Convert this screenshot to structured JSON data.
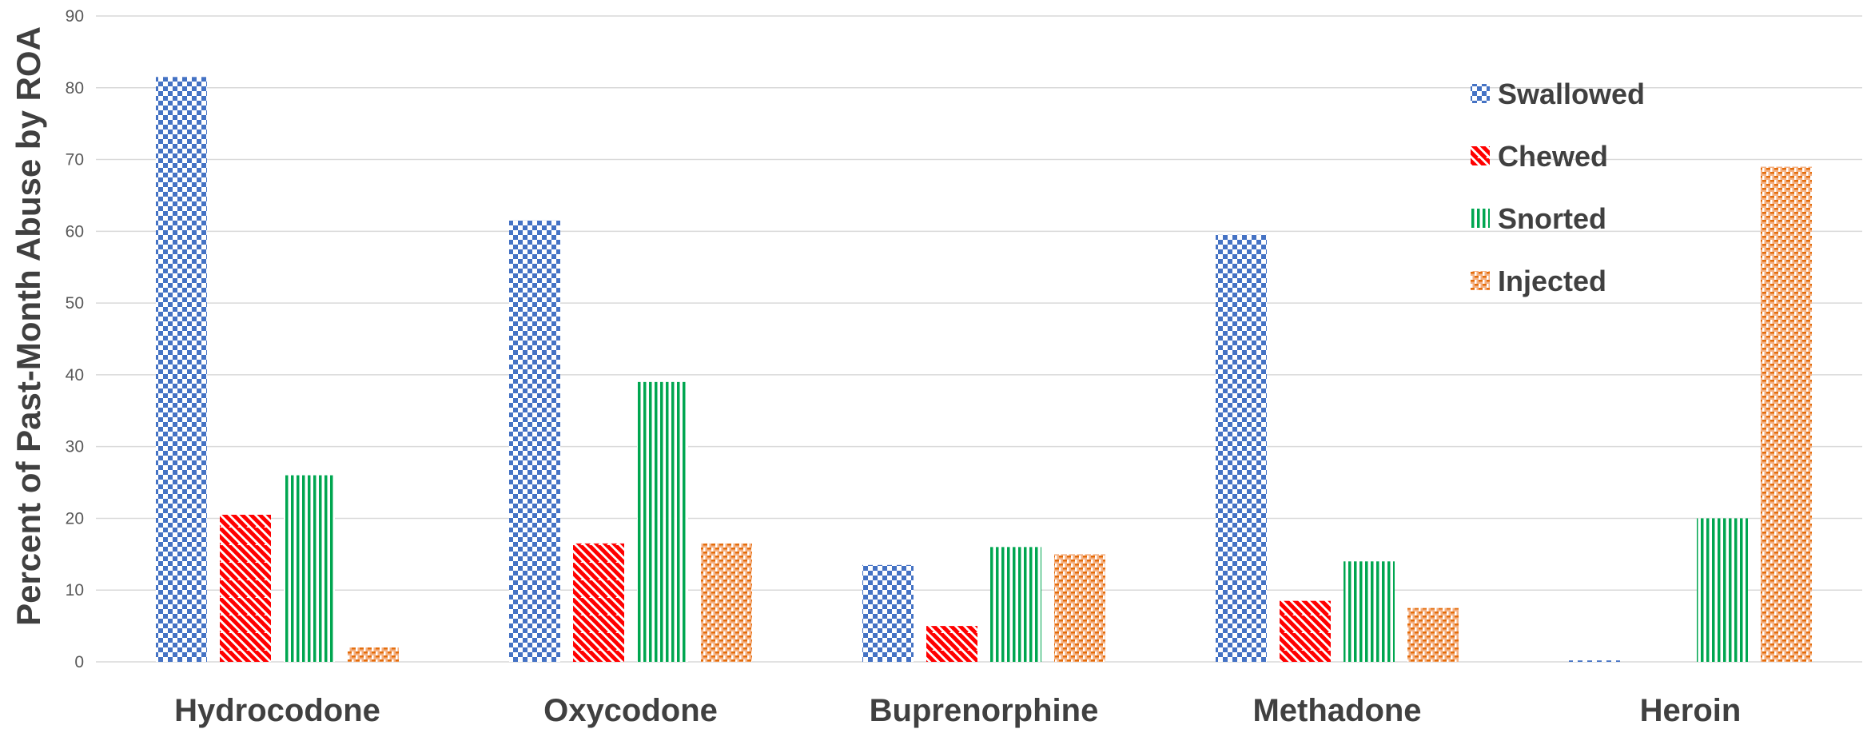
{
  "chart_data": {
    "type": "bar",
    "title": "",
    "xlabel": "",
    "ylabel": "Percent of Past-Month Abuse by ROA",
    "ylim": [
      0,
      90
    ],
    "yticks": [
      0,
      10,
      20,
      30,
      40,
      50,
      60,
      70,
      80,
      90
    ],
    "grid": true,
    "legend_position": "top-right",
    "categories": [
      "Hydrocodone",
      "Oxycodone",
      "Buprenorphine",
      "Methadone",
      "Heroin"
    ],
    "series": [
      {
        "name": "Swallowed",
        "pattern": "checker",
        "color": "#4472c4",
        "values": [
          81.5,
          61.5,
          13.5,
          59.5,
          0.2
        ]
      },
      {
        "name": "Chewed",
        "pattern": "diagonal",
        "color": "#ff0000",
        "values": [
          20.5,
          16.5,
          5.0,
          8.5,
          0
        ]
      },
      {
        "name": "Snorted",
        "pattern": "vertical",
        "color": "#00a650",
        "values": [
          26.0,
          39.0,
          16.0,
          14.0,
          20.0
        ]
      },
      {
        "name": "Injected",
        "pattern": "weave",
        "color": "#e46c0a",
        "values": [
          2.0,
          16.5,
          15.0,
          7.5,
          69.0
        ]
      }
    ]
  }
}
